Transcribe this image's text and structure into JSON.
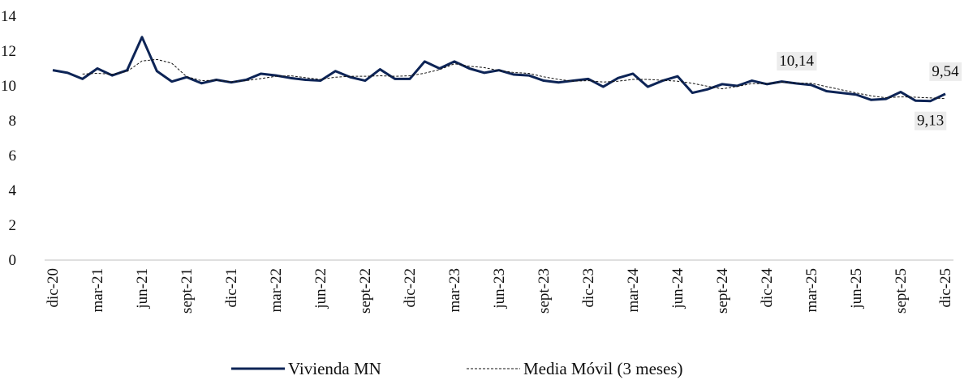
{
  "chart_data": {
    "type": "line",
    "categories": [
      "dic-20",
      null,
      null,
      "mar-21",
      null,
      null,
      "jun-21",
      null,
      null,
      "sept-21",
      null,
      null,
      "dic-21",
      null,
      null,
      "mar-22",
      null,
      null,
      "jun-22",
      null,
      null,
      "sept-22",
      null,
      null,
      "dic-22",
      null,
      null,
      "mar-23",
      null,
      null,
      "jun-23",
      null,
      null,
      "sept-23",
      null,
      null,
      "dic-23",
      null,
      null,
      "mar-24",
      null,
      null,
      "jun-24",
      null,
      null,
      "sept-24",
      null,
      null,
      "dic-24",
      null,
      null,
      "mar-25",
      null,
      null,
      "jun-25",
      null,
      null,
      "sept-25",
      null,
      null,
      "dic-25"
    ],
    "series": [
      {
        "name": "Vivienda MN",
        "color": "#0d2456",
        "style": "solid",
        "values": [
          10.9,
          10.75,
          10.4,
          11.0,
          10.6,
          10.9,
          12.8,
          10.85,
          10.25,
          10.5,
          10.15,
          10.35,
          10.2,
          10.35,
          10.7,
          10.6,
          10.45,
          10.35,
          10.3,
          10.85,
          10.5,
          10.3,
          10.95,
          10.4,
          10.4,
          11.4,
          11.0,
          11.4,
          11.0,
          10.75,
          10.9,
          10.65,
          10.6,
          10.3,
          10.2,
          10.3,
          10.4,
          9.95,
          10.45,
          10.7,
          9.95,
          10.3,
          10.55,
          9.6,
          9.8,
          10.1,
          10.0,
          10.3,
          10.1,
          10.25,
          10.14,
          10.05,
          9.7,
          9.6,
          9.5,
          9.2,
          9.25,
          9.65,
          9.15,
          9.13,
          9.54
        ],
        "value_labels": [
          null,
          null,
          null,
          null,
          null,
          null,
          null,
          null,
          null,
          null,
          null,
          null,
          null,
          null,
          null,
          null,
          null,
          null,
          null,
          null,
          null,
          null,
          null,
          null,
          null,
          null,
          null,
          null,
          null,
          null,
          null,
          null,
          null,
          null,
          null,
          null,
          null,
          null,
          null,
          null,
          null,
          null,
          null,
          null,
          null,
          null,
          null,
          null,
          null,
          null,
          "10,14",
          null,
          null,
          null,
          null,
          null,
          null,
          null,
          null,
          "9,13",
          "9,54"
        ]
      },
      {
        "name": "Media Móvil (3 meses)",
        "color": "#111111",
        "style": "dashed",
        "values": [
          null,
          null,
          10.68,
          10.72,
          10.67,
          10.83,
          11.43,
          11.52,
          11.3,
          10.53,
          10.3,
          10.33,
          10.23,
          10.3,
          10.42,
          10.55,
          10.58,
          10.47,
          10.37,
          10.5,
          10.55,
          10.55,
          10.58,
          10.55,
          10.58,
          10.73,
          10.93,
          11.27,
          11.13,
          11.05,
          10.88,
          10.77,
          10.72,
          10.52,
          10.37,
          10.27,
          10.3,
          10.22,
          10.27,
          10.37,
          10.37,
          10.32,
          10.27,
          10.15,
          9.98,
          9.83,
          9.97,
          10.13,
          10.13,
          10.22,
          10.16,
          10.15,
          9.96,
          9.78,
          9.6,
          9.43,
          9.32,
          9.37,
          9.35,
          9.31,
          9.27
        ]
      }
    ],
    "ylim": [
      0,
      14
    ],
    "yticks": [
      0,
      2,
      4,
      6,
      8,
      10,
      12,
      14
    ],
    "grid": false
  }
}
